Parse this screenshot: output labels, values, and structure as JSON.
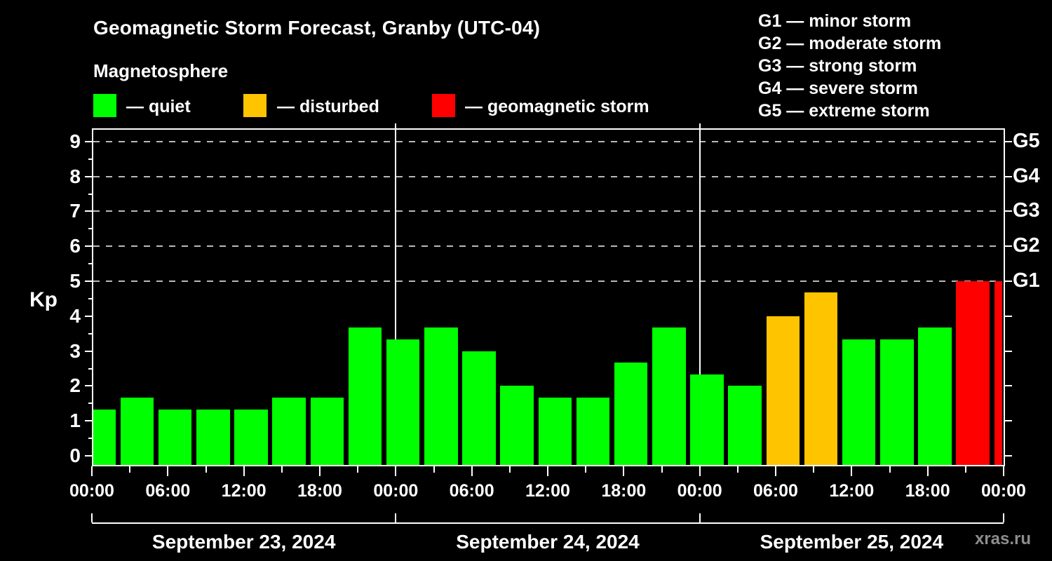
{
  "header": {
    "title": "Geomagnetic Storm Forecast, Granby (UTC-04)",
    "subtitle": "Magnetosphere"
  },
  "legend": {
    "items": [
      {
        "label": "— quiet",
        "color": "#00ff00"
      },
      {
        "label": "— disturbed",
        "color": "#ffc400"
      },
      {
        "label": "— geomagnetic storm",
        "color": "#ff0000"
      }
    ]
  },
  "g_legend": {
    "items": [
      "G1 — minor storm",
      "G2 — moderate storm",
      "G3 — strong storm",
      "G4 — severe storm",
      "G5 — extreme storm"
    ]
  },
  "watermark": "xras.ru",
  "chart_data": {
    "type": "bar",
    "title": "Geomagnetic Storm Forecast, Granby (UTC-04)",
    "ylabel": "Kp",
    "ylim": [
      0,
      9.5
    ],
    "interval_hours": 3,
    "grid": "dashed horizontal lines at Kp 5-9 only",
    "legend_position": "top-left (quiet/disturbed/storm), top-right (G1-G5)",
    "y_ticks": [
      0,
      1,
      2,
      3,
      4,
      5,
      6,
      7,
      8,
      9
    ],
    "time_ticks": [
      "00:00",
      "06:00",
      "12:00",
      "18:00",
      "00:00",
      "06:00",
      "12:00",
      "18:00",
      "00:00",
      "06:00",
      "12:00",
      "18:00",
      "00:00"
    ],
    "days": [
      {
        "date": "September 23, 2024",
        "values": [
          1.33,
          1.67,
          1.33,
          1.33,
          1.33,
          1.67,
          1.67,
          3.67
        ]
      },
      {
        "date": "September 24, 2024",
        "values": [
          3.33,
          3.67,
          3.0,
          2.0,
          1.67,
          1.67,
          2.67,
          3.67
        ]
      },
      {
        "date": "September 25, 2024",
        "values": [
          2.33,
          2.0,
          4.0,
          4.67,
          3.33,
          3.33,
          3.67,
          5.0
        ]
      }
    ],
    "next_period_value": 5.0,
    "g_levels": [
      {
        "label": "G1",
        "kp": 5
      },
      {
        "label": "G2",
        "kp": 6
      },
      {
        "label": "G3",
        "kp": 7
      },
      {
        "label": "G4",
        "kp": 8
      },
      {
        "label": "G5",
        "kp": 9
      }
    ],
    "colors": {
      "quiet": "#00ff00",
      "disturbed": "#ffc400",
      "storm": "#ff0000"
    },
    "thresholds": {
      "disturbed_min": 4,
      "storm_min": 5
    }
  }
}
